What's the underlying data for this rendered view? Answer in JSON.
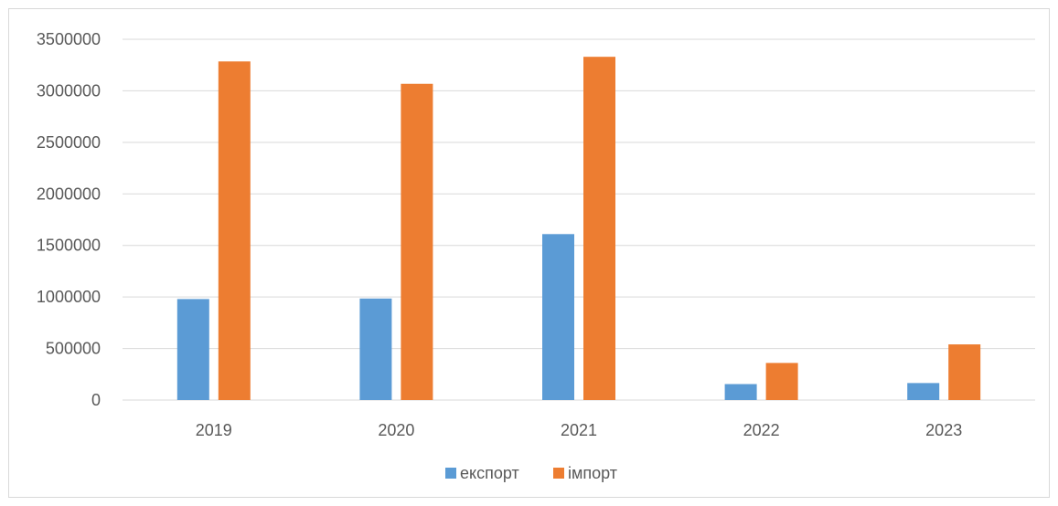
{
  "chart_data": {
    "type": "bar",
    "categories": [
      "2019",
      "2020",
      "2021",
      "2022",
      "2023"
    ],
    "series": [
      {
        "name": "експорт",
        "color": "#5b9bd5",
        "values": [
          980000,
          985000,
          1610000,
          155000,
          165000
        ]
      },
      {
        "name": "імпорт",
        "color": "#ed7d31",
        "values": [
          3285000,
          3068000,
          3330000,
          360000,
          540000
        ]
      }
    ],
    "ylim": [
      0,
      3500000
    ],
    "yticks": [
      0,
      500000,
      1000000,
      1500000,
      2000000,
      2500000,
      3000000,
      3500000
    ],
    "ytick_labels": [
      "0",
      "500000",
      "1000000",
      "1500000",
      "2000000",
      "2500000",
      "3000000",
      "3500000"
    ],
    "grid": true,
    "legend": "bottom-center",
    "title": "",
    "xlabel": "",
    "ylabel": ""
  }
}
